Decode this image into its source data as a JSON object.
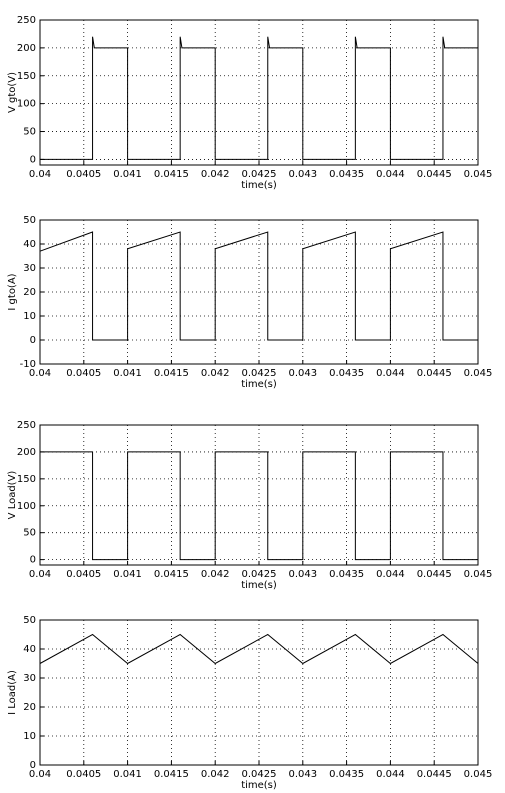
{
  "chart_data": [
    {
      "type": "line",
      "xlabel": "time(s)",
      "ylabel": "V gto(V)",
      "color": "#000000",
      "grid": true,
      "x": [
        0.04,
        0.0406,
        0.0406,
        0.04062,
        0.041,
        0.041,
        0.0416,
        0.0416,
        0.04162,
        0.042,
        0.042,
        0.0426,
        0.0426,
        0.04262,
        0.043,
        0.043,
        0.0436,
        0.0436,
        0.04362,
        0.044,
        0.044,
        0.0446,
        0.0446,
        0.04462,
        0.045
      ],
      "values": [
        0,
        0,
        220,
        200,
        200,
        0,
        0,
        220,
        200,
        200,
        0,
        0,
        220,
        200,
        200,
        0,
        0,
        220,
        200,
        200,
        0,
        0,
        220,
        200,
        200
      ],
      "xlim": [
        0.04,
        0.045
      ],
      "xticks": [
        0.04,
        0.0405,
        0.041,
        0.0415,
        0.042,
        0.0425,
        0.043,
        0.0435,
        0.044,
        0.0445,
        0.045
      ],
      "ylim": [
        -10,
        250
      ],
      "yticks": [
        0,
        50,
        100,
        150,
        200,
        250
      ]
    },
    {
      "type": "line",
      "xlabel": "time(s)",
      "ylabel": "I gto(A)",
      "color": "#000000",
      "grid": true,
      "x": [
        0.04,
        0.0406,
        0.0406,
        0.041,
        0.041,
        0.0416,
        0.0416,
        0.042,
        0.042,
        0.0426,
        0.0426,
        0.043,
        0.043,
        0.0436,
        0.0436,
        0.044,
        0.044,
        0.0446,
        0.0446,
        0.045
      ],
      "values": [
        37,
        45,
        0,
        0,
        38,
        45,
        0,
        0,
        38,
        45,
        0,
        0,
        38,
        45,
        0,
        0,
        38,
        45,
        0,
        0
      ],
      "xlim": [
        0.04,
        0.045
      ],
      "xticks": [
        0.04,
        0.0405,
        0.041,
        0.0415,
        0.042,
        0.0425,
        0.043,
        0.0435,
        0.044,
        0.0445,
        0.045
      ],
      "ylim": [
        -10,
        50
      ],
      "yticks": [
        -10,
        0,
        10,
        20,
        30,
        40,
        50
      ]
    },
    {
      "type": "line",
      "xlabel": "time(s)",
      "ylabel": "V Load(V)",
      "color": "#000000",
      "grid": true,
      "x": [
        0.04,
        0.0406,
        0.0406,
        0.041,
        0.041,
        0.0416,
        0.0416,
        0.042,
        0.042,
        0.0426,
        0.0426,
        0.043,
        0.043,
        0.0436,
        0.0436,
        0.044,
        0.044,
        0.0446,
        0.0446,
        0.045
      ],
      "values": [
        200,
        200,
        0,
        0,
        200,
        200,
        0,
        0,
        200,
        200,
        0,
        0,
        200,
        200,
        0,
        0,
        200,
        200,
        0,
        0
      ],
      "xlim": [
        0.04,
        0.045
      ],
      "xticks": [
        0.04,
        0.0405,
        0.041,
        0.0415,
        0.042,
        0.0425,
        0.043,
        0.0435,
        0.044,
        0.0445,
        0.045
      ],
      "ylim": [
        -10,
        250
      ],
      "yticks": [
        0,
        50,
        100,
        150,
        200,
        250
      ]
    },
    {
      "type": "line",
      "xlabel": "time(s)",
      "ylabel": "I Load(A)",
      "color": "#000000",
      "grid": true,
      "x": [
        0.04,
        0.0406,
        0.041,
        0.0416,
        0.042,
        0.0426,
        0.043,
        0.0436,
        0.044,
        0.0446,
        0.045
      ],
      "values": [
        35,
        45,
        35,
        45,
        35,
        45,
        35,
        45,
        35,
        45,
        35
      ],
      "xlim": [
        0.04,
        0.045
      ],
      "xticks": [
        0.04,
        0.0405,
        0.041,
        0.0415,
        0.042,
        0.0425,
        0.043,
        0.0435,
        0.044,
        0.0445,
        0.045
      ],
      "ylim": [
        0,
        50
      ],
      "yticks": [
        0,
        10,
        20,
        30,
        40,
        50
      ]
    }
  ]
}
